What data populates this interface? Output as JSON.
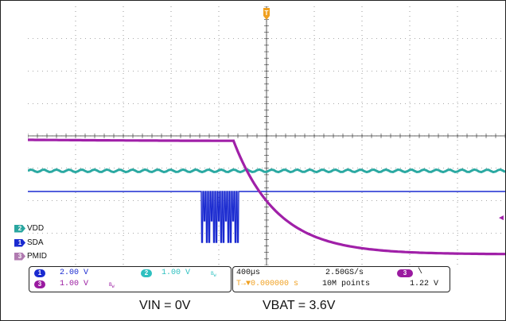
{
  "scope": {
    "trigger_marker": "T",
    "channel_labels": [
      {
        "num": "2",
        "name": "VDD",
        "color": "#2aa6a0"
      },
      {
        "num": "1",
        "name": "SDA",
        "color": "#1a2ad0"
      },
      {
        "num": "3",
        "name": "PMID",
        "color": "#b07ab0"
      }
    ],
    "right_marker": "◄"
  },
  "status": {
    "ch1": {
      "num": "1",
      "value": "2.00 V",
      "color": "#1a2ad0"
    },
    "ch2": {
      "num": "2",
      "value": "1.00 V",
      "color": "#2ec0c0"
    },
    "ch3": {
      "num": "3",
      "value": "1.00 V",
      "color": "#9a1aa0"
    },
    "bw": "B",
    "bw_sub": "W",
    "timebase": "400µs",
    "trigger_pos": "T→▼0.000000 s",
    "sample_rate": "2.50GS/s",
    "record_len": "10M points",
    "trig_ch": {
      "num": "3",
      "slope": "\\",
      "level": "1.22 V",
      "color": "#9a1aa0"
    }
  },
  "captions": {
    "vin": "VIN = 0V",
    "vbat": "VBAT = 3.6V"
  },
  "colors": {
    "grid": "#555555",
    "ch1": "#1a2ad0",
    "ch2": "#2ba9a2",
    "ch3": "#a020a8",
    "trigger": "#f0a020"
  }
}
